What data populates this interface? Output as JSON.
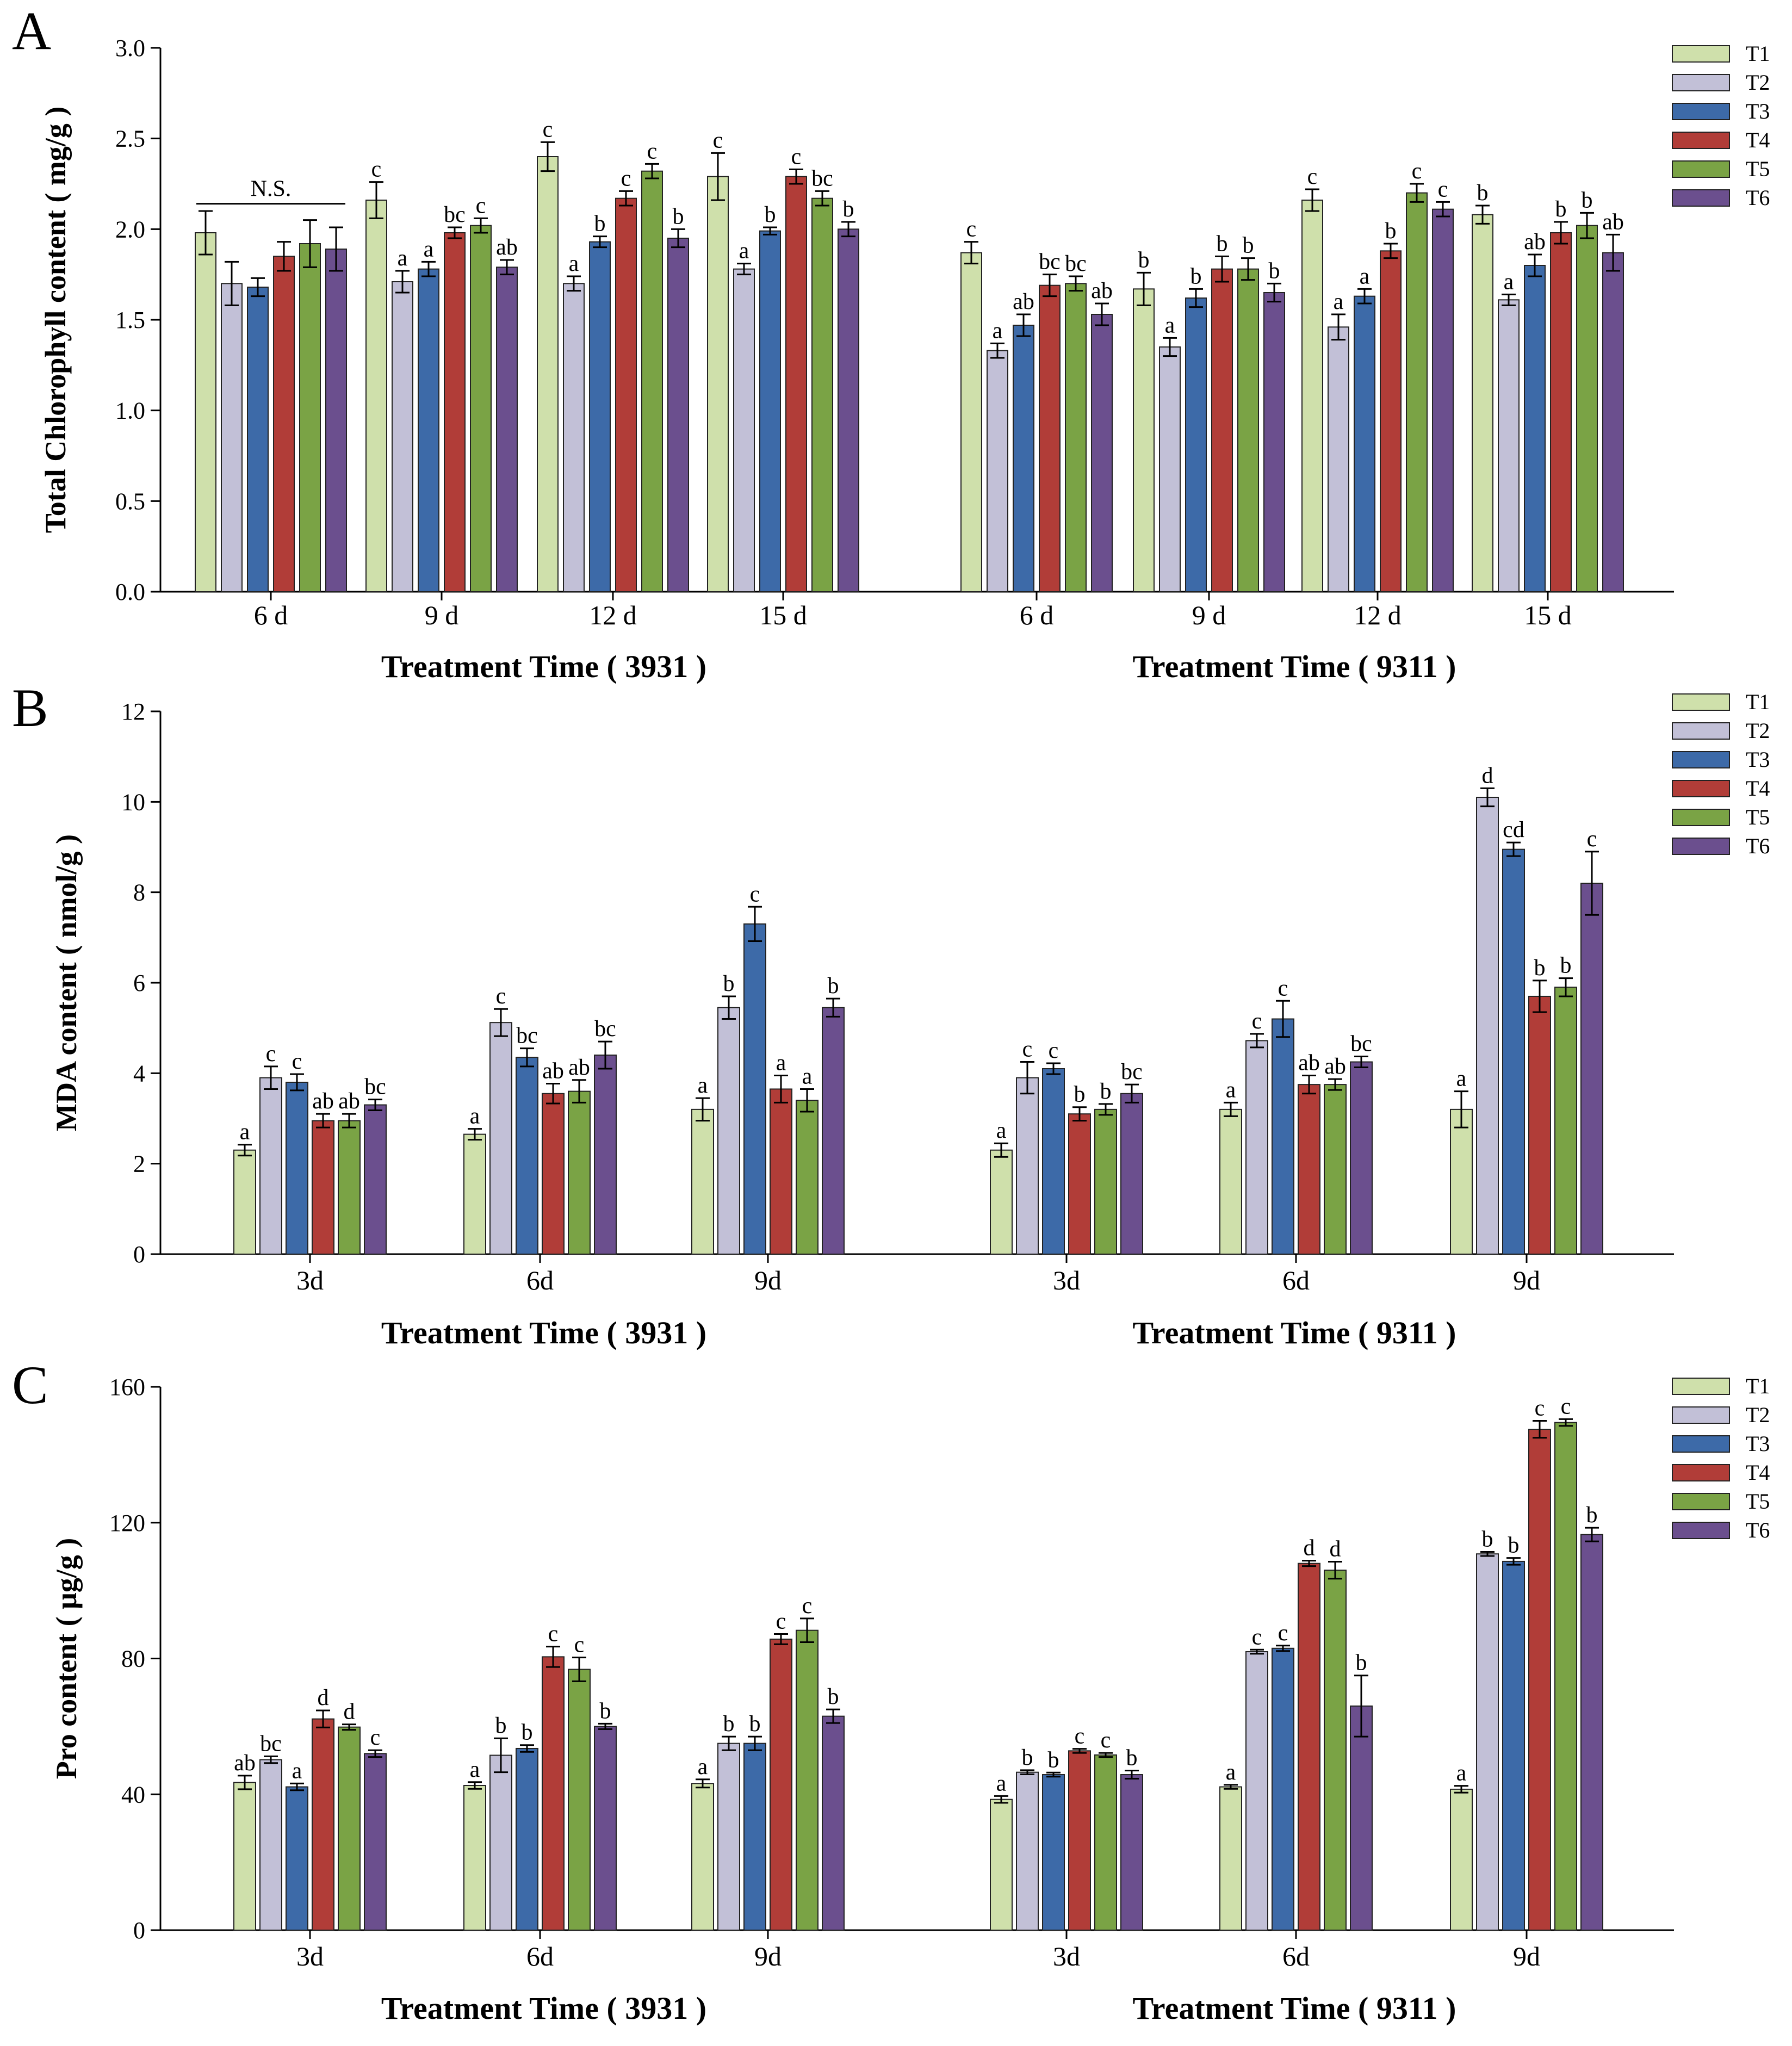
{
  "legend_names": [
    "T1",
    "T2",
    "T3",
    "T4",
    "T5",
    "T6"
  ],
  "colors": [
    "#cfe0ab",
    "#c2c0d7",
    "#3d6aa8",
    "#b13d38",
    "#7aa345",
    "#6b4f8e"
  ],
  "chart_data": [
    {
      "type": "bar",
      "panel": "A",
      "ylabel": "Total Chlorophyll  content ( mg/g )",
      "ylim": [
        0,
        3.0
      ],
      "yticks": [
        "0.0",
        "0.5",
        "1.0",
        "1.5",
        "2.0",
        "2.5",
        "3.0"
      ],
      "legend_position": "top-right",
      "annotation": "N.S.",
      "groups": [
        {
          "xlabel": "Treatment Time ( 3931 )",
          "categories": [
            {
              "label": "6 d",
              "values": [
                1.98,
                1.7,
                1.68,
                1.85,
                1.92,
                1.89
              ],
              "errors": [
                0.12,
                0.12,
                0.05,
                0.08,
                0.13,
                0.12
              ],
              "letters": [
                "",
                "",
                "",
                "",
                "",
                ""
              ]
            },
            {
              "label": "9 d",
              "values": [
                2.16,
                1.71,
                1.78,
                1.98,
                2.02,
                1.79
              ],
              "errors": [
                0.1,
                0.06,
                0.04,
                0.03,
                0.04,
                0.04
              ],
              "letters": [
                "c",
                "a",
                "a",
                "bc",
                "c",
                "ab"
              ]
            },
            {
              "label": "12 d",
              "values": [
                2.4,
                1.7,
                1.93,
                2.17,
                2.32,
                1.95
              ],
              "errors": [
                0.08,
                0.04,
                0.03,
                0.04,
                0.04,
                0.05
              ],
              "letters": [
                "c",
                "a",
                "b",
                "c",
                "c",
                "b"
              ]
            },
            {
              "label": "15 d",
              "values": [
                2.29,
                1.78,
                1.99,
                2.29,
                2.17,
                2.0
              ],
              "errors": [
                0.13,
                0.03,
                0.02,
                0.04,
                0.04,
                0.04
              ],
              "letters": [
                "c",
                "a",
                "b",
                "c",
                "bc",
                "b"
              ]
            }
          ]
        },
        {
          "xlabel": "Treatment Time ( 9311 )",
          "categories": [
            {
              "label": "6 d",
              "values": [
                1.87,
                1.33,
                1.47,
                1.69,
                1.7,
                1.53
              ],
              "errors": [
                0.06,
                0.04,
                0.06,
                0.06,
                0.04,
                0.06
              ],
              "letters": [
                "c",
                "a",
                "ab",
                "bc",
                "bc",
                "ab"
              ]
            },
            {
              "label": "9 d",
              "values": [
                1.67,
                1.35,
                1.62,
                1.78,
                1.78,
                1.65
              ],
              "errors": [
                0.09,
                0.05,
                0.05,
                0.07,
                0.06,
                0.05
              ],
              "letters": [
                "b",
                "a",
                "b",
                "b",
                "b",
                "b"
              ]
            },
            {
              "label": "12 d",
              "values": [
                2.16,
                1.46,
                1.63,
                1.88,
                2.2,
                2.11
              ],
              "errors": [
                0.06,
                0.07,
                0.04,
                0.04,
                0.05,
                0.04
              ],
              "letters": [
                "c",
                "a",
                "a",
                "b",
                "c",
                "c"
              ]
            },
            {
              "label": "15 d",
              "values": [
                2.08,
                1.61,
                1.8,
                1.98,
                2.02,
                1.87
              ],
              "errors": [
                0.05,
                0.03,
                0.06,
                0.06,
                0.07,
                0.1
              ],
              "letters": [
                "b",
                "a",
                "ab",
                "b",
                "b",
                "ab"
              ]
            }
          ]
        }
      ]
    },
    {
      "type": "bar",
      "panel": "B",
      "ylabel": "MDA content ( nmol/g )",
      "ylim": [
        0,
        12
      ],
      "yticks": [
        "0",
        "2",
        "4",
        "6",
        "8",
        "10",
        "12"
      ],
      "legend_position": "top-right",
      "groups": [
        {
          "xlabel": "Treatment Time ( 3931 )",
          "categories": [
            {
              "label": "3d",
              "values": [
                2.3,
                3.9,
                3.8,
                2.95,
                2.95,
                3.3
              ],
              "errors": [
                0.12,
                0.25,
                0.18,
                0.15,
                0.15,
                0.12
              ],
              "letters": [
                "a",
                "c",
                "c",
                "ab",
                "ab",
                "bc"
              ]
            },
            {
              "label": "6d",
              "values": [
                2.65,
                5.12,
                4.35,
                3.55,
                3.6,
                4.4
              ],
              "errors": [
                0.12,
                0.3,
                0.2,
                0.22,
                0.25,
                0.3
              ],
              "letters": [
                "a",
                "c",
                "bc",
                "ab",
                "ab",
                "bc"
              ]
            },
            {
              "label": "9d",
              "values": [
                3.2,
                5.45,
                7.3,
                3.65,
                3.4,
                5.45
              ],
              "errors": [
                0.25,
                0.25,
                0.38,
                0.3,
                0.25,
                0.2
              ],
              "letters": [
                "a",
                "b",
                "c",
                "a",
                "a",
                "b"
              ]
            }
          ]
        },
        {
          "xlabel": "Treatment Time ( 9311 )",
          "categories": [
            {
              "label": "3d",
              "values": [
                2.3,
                3.9,
                4.1,
                3.1,
                3.2,
                3.55
              ],
              "errors": [
                0.15,
                0.35,
                0.12,
                0.15,
                0.12,
                0.2
              ],
              "letters": [
                "a",
                "c",
                "c",
                "b",
                "b",
                "bc"
              ]
            },
            {
              "label": "6d",
              "values": [
                3.2,
                4.72,
                5.2,
                3.75,
                3.75,
                4.25
              ],
              "errors": [
                0.15,
                0.15,
                0.4,
                0.2,
                0.12,
                0.12
              ],
              "letters": [
                "a",
                "c",
                "c",
                "ab",
                "ab",
                "bc"
              ]
            },
            {
              "label": "9d",
              "values": [
                3.2,
                10.1,
                8.95,
                5.7,
                5.9,
                8.2
              ],
              "errors": [
                0.4,
                0.2,
                0.15,
                0.35,
                0.2,
                0.7
              ],
              "letters": [
                "a",
                "d",
                "cd",
                "b",
                "b",
                "c"
              ]
            }
          ]
        }
      ]
    },
    {
      "type": "bar",
      "panel": "C",
      "ylabel": "Pro content ( μg/g )",
      "ylim": [
        0,
        160
      ],
      "yticks": [
        "0",
        "40",
        "80",
        "120",
        "160"
      ],
      "legend_position": "top-right",
      "groups": [
        {
          "xlabel": "Treatment Time ( 3931 )",
          "categories": [
            {
              "label": "3d",
              "values": [
                43.5,
                50.2,
                42.2,
                62.2,
                59.8,
                52.0
              ],
              "errors": [
                2.0,
                1.0,
                1.0,
                2.5,
                0.8,
                1.0
              ],
              "letters": [
                "ab",
                "bc",
                "a",
                "d",
                "d",
                "c"
              ]
            },
            {
              "label": "6d",
              "values": [
                42.6,
                51.5,
                53.5,
                80.5,
                76.8,
                60.0
              ],
              "errors": [
                1.0,
                5.0,
                1.0,
                3.0,
                3.5,
                0.8
              ],
              "letters": [
                "a",
                "b",
                "b",
                "c",
                "c",
                "b"
              ]
            },
            {
              "label": "9d",
              "values": [
                43.2,
                55.0,
                55.0,
                85.7,
                88.3,
                63.0
              ],
              "errors": [
                1.2,
                2.0,
                2.0,
                1.5,
                3.5,
                2.0
              ],
              "letters": [
                "a",
                "b",
                "b",
                "c",
                "c",
                "b"
              ]
            }
          ]
        },
        {
          "xlabel": "Treatment Time ( 9311 )",
          "categories": [
            {
              "label": "3d",
              "values": [
                38.5,
                46.5,
                45.8,
                52.8,
                51.6,
                45.8
              ],
              "errors": [
                1.0,
                0.6,
                0.6,
                0.6,
                0.6,
                1.2
              ],
              "letters": [
                "a",
                "b",
                "b",
                "c",
                "c",
                "b"
              ]
            },
            {
              "label": "6d",
              "values": [
                42.2,
                82.0,
                83.0,
                108.0,
                106.0,
                66.0
              ],
              "errors": [
                0.6,
                0.6,
                0.8,
                0.8,
                2.5,
                9.0
              ],
              "letters": [
                "a",
                "c",
                "c",
                "d",
                "d",
                "b"
              ]
            },
            {
              "label": "9d",
              "values": [
                41.5,
                110.8,
                108.6,
                147.5,
                149.5,
                116.5
              ],
              "errors": [
                1.0,
                0.6,
                1.0,
                2.5,
                1.0,
                2.0
              ],
              "letters": [
                "a",
                "b",
                "b",
                "c",
                "c",
                "b"
              ]
            }
          ]
        }
      ]
    }
  ]
}
